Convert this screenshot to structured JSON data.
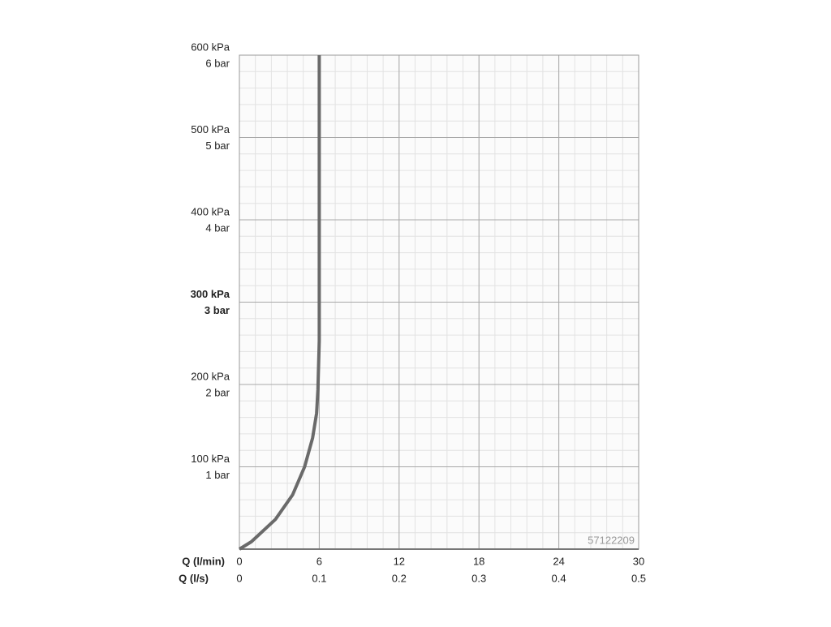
{
  "chart_data": {
    "type": "line",
    "x_label": "Q (l/min)",
    "x2_label": "Q (l/s)",
    "xlim": [
      0,
      30
    ],
    "xticks": [
      0,
      6,
      12,
      18,
      24,
      30
    ],
    "x2lim": [
      0,
      0.5
    ],
    "x2ticks": [
      0,
      0.1,
      0.2,
      0.3,
      0.4,
      0.5
    ],
    "ylim": [
      0,
      600
    ],
    "yticks": [
      {
        "value": 100,
        "label": "100 kPa",
        "label2": "1 bar"
      },
      {
        "value": 200,
        "label": "200 kPa",
        "label2": "2 bar"
      },
      {
        "value": 300,
        "label": "300 kPa",
        "label2": "3 bar",
        "bold": true
      },
      {
        "value": 400,
        "label": "400 kPa",
        "label2": "4 bar"
      },
      {
        "value": 500,
        "label": "500 kPa",
        "label2": "5 bar"
      },
      {
        "value": 600,
        "label": "600 kPa",
        "label2": "6 bar"
      }
    ],
    "grid": true,
    "minor_grid": {
      "x": 1.2,
      "y": 20
    },
    "watermark": "57122209",
    "series": [
      {
        "color": "#6a6a6a",
        "x": [
          0,
          0.9,
          2.7,
          4.0,
          4.9,
          5.5,
          5.8,
          5.9,
          6.0,
          6.0
        ],
        "values": [
          0,
          9,
          36,
          66,
          100,
          135,
          165,
          194,
          253,
          600
        ]
      }
    ]
  }
}
